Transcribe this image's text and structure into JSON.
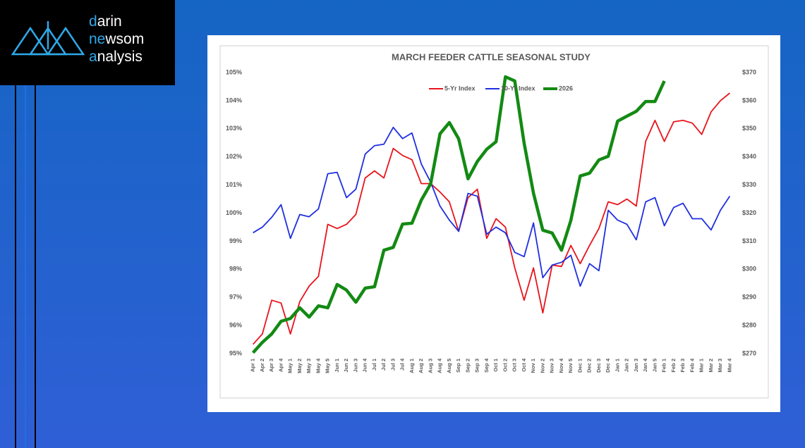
{
  "logo": {
    "lines": [
      [
        "d",
        "arin"
      ],
      [
        "ne",
        "wsom"
      ],
      [
        "a",
        "nalysis"
      ]
    ]
  },
  "chart_data": {
    "type": "line",
    "title": "MARCH FEEDER CATTLE SEASONAL STUDY",
    "categories": [
      "Apr 1",
      "Apr 2",
      "Apr 3",
      "Apr 4",
      "May 1",
      "May 2",
      "May 3",
      "May 4",
      "May 5",
      "Jun 1",
      "Jun 2",
      "Jun 3",
      "Jun 4",
      "Jul 1",
      "Jul 2",
      "Jul 3",
      "Jul 4",
      "Aug 1",
      "Aug 2",
      "Aug 3",
      "Aug 4",
      "Aug 5",
      "Sep 1",
      "Sep 2",
      "Sep 3",
      "Sep 4",
      "Oct 1",
      "Oct 2",
      "Oct 3",
      "Oct 4",
      "Nov 1",
      "Nov 2",
      "Nov 3",
      "Nov 4",
      "Nov 5",
      "Dec 1",
      "Dec 2",
      "Dec 3",
      "Dec 4",
      "Jan 1",
      "Jan 2",
      "Jan 3",
      "Jan 4",
      "Jan 5",
      "Feb 1",
      "Feb 2",
      "Feb 3",
      "Feb 4",
      "Mar 1",
      "Mar 2",
      "Mar 3",
      "Mar 4"
    ],
    "series": [
      {
        "name": "5-Yr Index",
        "color": "#e8141b",
        "values": [
          95.33,
          95.7,
          96.9,
          96.8,
          95.7,
          96.85,
          97.4,
          97.75,
          99.6,
          99.45,
          99.6,
          99.95,
          101.25,
          101.5,
          101.25,
          102.3,
          102.05,
          101.9,
          101.05,
          101.05,
          100.75,
          100.4,
          99.35,
          100.55,
          100.85,
          99.1,
          99.8,
          99.5,
          98.05,
          96.9,
          98.05,
          96.45,
          98.15,
          98.1,
          98.85,
          98.2,
          98.85,
          99.45,
          100.4,
          100.3,
          100.5,
          100.25,
          102.55,
          103.3,
          102.55,
          103.25,
          103.3,
          103.2,
          102.8,
          103.6,
          104.0,
          104.27
        ]
      },
      {
        "name": "10-Yr Index",
        "color": "#1f2fe0",
        "values": [
          99.3,
          99.5,
          99.85,
          100.3,
          99.1,
          99.95,
          99.87,
          100.15,
          101.4,
          101.45,
          100.55,
          100.85,
          102.1,
          102.4,
          102.45,
          103.05,
          102.65,
          102.85,
          101.75,
          101.1,
          100.25,
          99.75,
          99.35,
          100.7,
          100.6,
          99.25,
          99.5,
          99.3,
          98.6,
          98.45,
          99.65,
          97.7,
          98.15,
          98.25,
          98.5,
          97.4,
          98.2,
          97.95,
          100.1,
          99.75,
          99.6,
          99.05,
          100.4,
          100.55,
          99.55,
          100.2,
          100.35,
          99.8,
          99.8,
          99.4,
          100.1,
          100.6
        ]
      },
      {
        "name": "2026",
        "color": "#138a13",
        "axis": "y2",
        "values": [
          270.3,
          274,
          277,
          281.5,
          282.5,
          286.3,
          283,
          287,
          286.3,
          294.6,
          292.6,
          288.3,
          293.3,
          293.8,
          306.8,
          307.8,
          316.1,
          316.4,
          324.6,
          330.4,
          348.2,
          352.2,
          346.4,
          332.2,
          338.4,
          342.7,
          345.4,
          368.5,
          367,
          344.9,
          327.1,
          313.9,
          312.9,
          306.8,
          317.4,
          333.2,
          334.2,
          338.9,
          340.2,
          352.7,
          354.5,
          356.2,
          359.7,
          359.7,
          367,
          null,
          null,
          null,
          null,
          null,
          null,
          null
        ]
      }
    ],
    "ylim": [
      95,
      105
    ],
    "yticks": [
      {
        "value": 95,
        "label": "95%"
      },
      {
        "value": 96,
        "label": "96%"
      },
      {
        "value": 97,
        "label": "97%"
      },
      {
        "value": 98,
        "label": "98%"
      },
      {
        "value": 99,
        "label": "99%"
      },
      {
        "value": 100,
        "label": "100%"
      },
      {
        "value": 101,
        "label": "101%"
      },
      {
        "value": 102,
        "label": "102%"
      },
      {
        "value": 103,
        "label": "103%"
      },
      {
        "value": 104,
        "label": "104%"
      },
      {
        "value": 105,
        "label": "105%"
      }
    ],
    "y2lim": [
      270,
      370
    ],
    "y2ticks": [
      {
        "value": 270,
        "label": "$270"
      },
      {
        "value": 280,
        "label": "$280"
      },
      {
        "value": 290,
        "label": "$290"
      },
      {
        "value": 300,
        "label": "$300"
      },
      {
        "value": 310,
        "label": "$310"
      },
      {
        "value": 320,
        "label": "$320"
      },
      {
        "value": 330,
        "label": "$330"
      },
      {
        "value": 340,
        "label": "$340"
      },
      {
        "value": 350,
        "label": "$350"
      },
      {
        "value": 360,
        "label": "$360"
      },
      {
        "value": 370,
        "label": "$370"
      }
    ],
    "grid": false,
    "legend": "top"
  }
}
